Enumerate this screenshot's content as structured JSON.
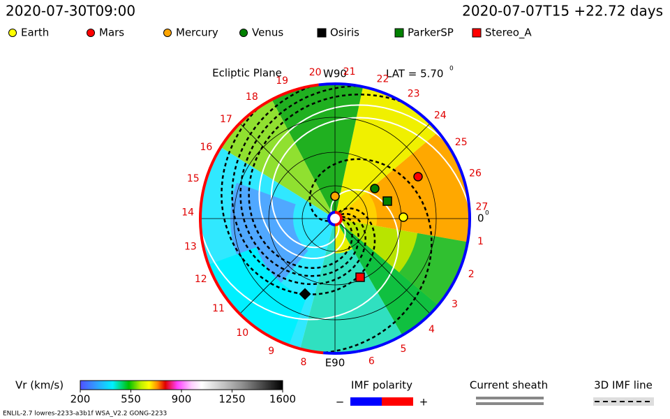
{
  "header": {
    "time": "2020-07-30T09:00",
    "run": "2020-07-07T15 +22.72 days"
  },
  "legend": [
    {
      "label": "Earth",
      "color": "#ffff00",
      "shape": "circle"
    },
    {
      "label": "Mars",
      "color": "#ff0000",
      "shape": "circle"
    },
    {
      "label": "Mercury",
      "color": "#ffa500",
      "shape": "circle"
    },
    {
      "label": "Venus",
      "color": "#008000",
      "shape": "circle"
    },
    {
      "label": "Osiris",
      "color": "#000000",
      "shape": "square"
    },
    {
      "label": "ParkerSP",
      "color": "#008000",
      "shape": "square"
    },
    {
      "label": "Stereo_A",
      "color": "#ff0000",
      "shape": "square"
    }
  ],
  "plot": {
    "title": "Ecliptic Plane",
    "top_label": "W90",
    "bottom_label": "E90",
    "lat": "LAT = 5.70",
    "lat_sup": "0",
    "zero_label": "0",
    "zero_sup": "0",
    "sector_labels": [
      "1",
      "2",
      "3",
      "4",
      "5",
      "6",
      null,
      "8",
      "9",
      "10",
      "11",
      "12",
      "13",
      "14",
      "15",
      "16",
      "17",
      "18",
      "19",
      "20",
      "21",
      "22",
      "23",
      "24",
      "25",
      "26",
      "27"
    ]
  },
  "colorbar": {
    "label": "Vr (km/s)",
    "ticks": [
      200,
      550,
      900,
      1250,
      1600
    ]
  },
  "imf_polarity": {
    "title": "IMF polarity",
    "minus": "−",
    "plus": "+"
  },
  "current_sheath": "Current sheath",
  "imf_line": "3D IMF line",
  "footer": "ENLIL-2.7 lowres-2233-a3b1f WSA_V2.2 GONG-2233"
}
